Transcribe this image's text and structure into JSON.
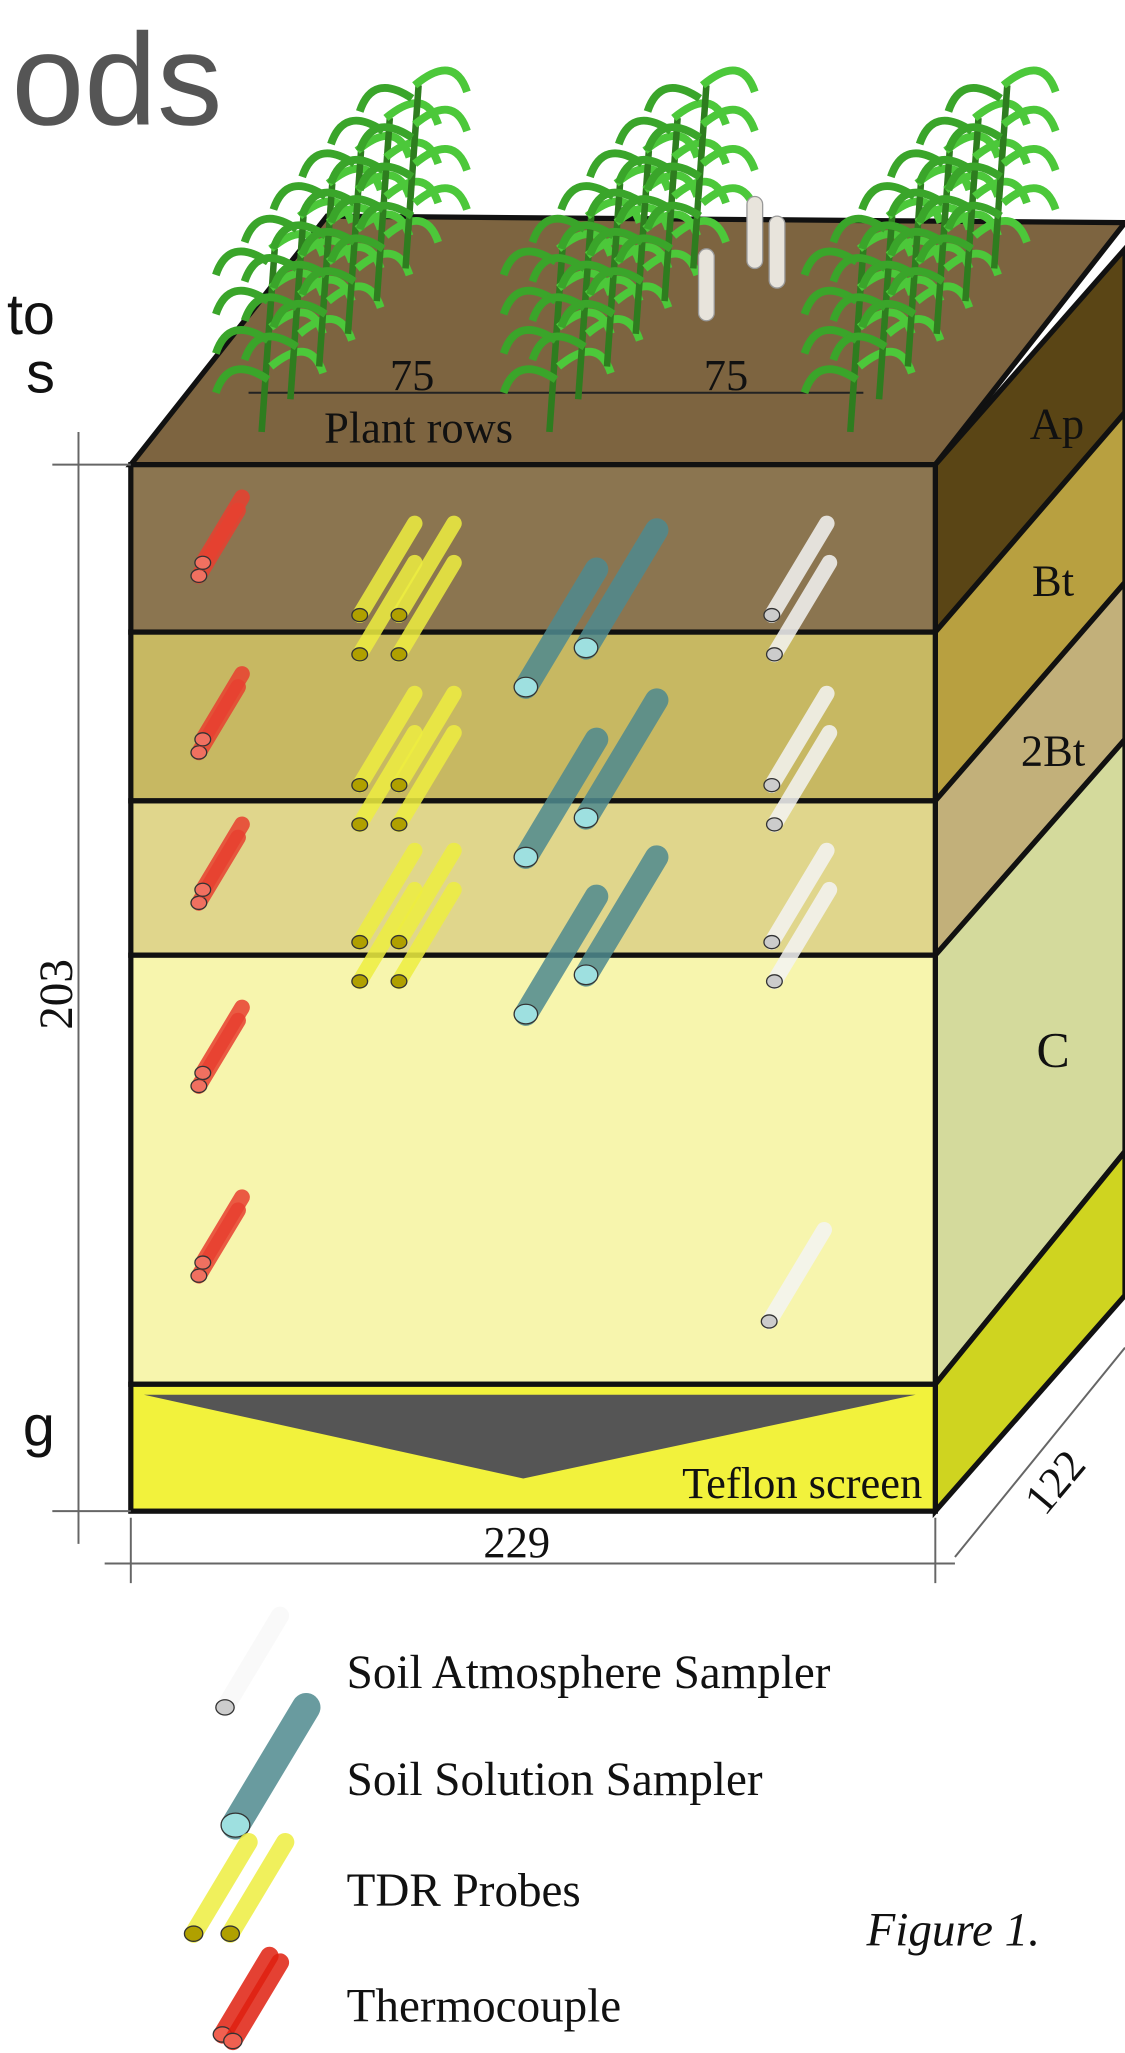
{
  "slide": {
    "title_fragment": "ods",
    "text_fragments": [
      "to",
      "s",
      "g"
    ]
  },
  "diagram": {
    "row_spacing": [
      75,
      75
    ],
    "plant_rows_label": "Plant rows",
    "horizons": [
      "Ap",
      "Bt",
      "2Bt",
      "C"
    ],
    "height": 203,
    "width": 229,
    "depth": 122,
    "screen_label": "Teflon screen"
  },
  "legend": [
    "Soil Atmosphere Sampler",
    "Soil Solution Sampler",
    "TDR Probes",
    "Thermocouple"
  ],
  "caption": "Figure 1."
}
